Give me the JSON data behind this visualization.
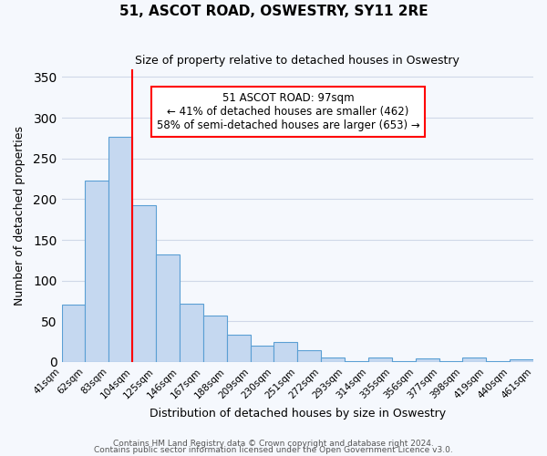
{
  "title": "51, ASCOT ROAD, OSWESTRY, SY11 2RE",
  "subtitle": "Size of property relative to detached houses in Oswestry",
  "xlabel": "Distribution of detached houses by size in Oswestry",
  "ylabel": "Number of detached properties",
  "footnote1": "Contains HM Land Registry data © Crown copyright and database right 2024.",
  "footnote2": "Contains public sector information licensed under the Open Government Licence v3.0.",
  "bin_labels": [
    "41sqm",
    "62sqm",
    "83sqm",
    "104sqm",
    "125sqm",
    "146sqm",
    "167sqm",
    "188sqm",
    "209sqm",
    "230sqm",
    "251sqm",
    "272sqm",
    "293sqm",
    "314sqm",
    "335sqm",
    "356sqm",
    "377sqm",
    "398sqm",
    "419sqm",
    "440sqm",
    "461sqm"
  ],
  "bar_heights": [
    70,
    223,
    277,
    193,
    132,
    72,
    57,
    33,
    20,
    25,
    15,
    5,
    1,
    6,
    1,
    4,
    1,
    6,
    1,
    3
  ],
  "bar_color": "#c5d8f0",
  "bar_edge_color": "#5a9fd4",
  "vline_x": 2.5,
  "vline_color": "red",
  "annotation_title": "51 ASCOT ROAD: 97sqm",
  "annotation_line1": "← 41% of detached houses are smaller (462)",
  "annotation_line2": "58% of semi-detached houses are larger (653) →",
  "annotation_box_color": "white",
  "annotation_box_edge_color": "red",
  "ylim": [
    0,
    360
  ],
  "yticks": [
    0,
    50,
    100,
    150,
    200,
    250,
    300,
    350
  ],
  "background_color": "#f5f8fd",
  "grid_color": "#d0d8e8"
}
